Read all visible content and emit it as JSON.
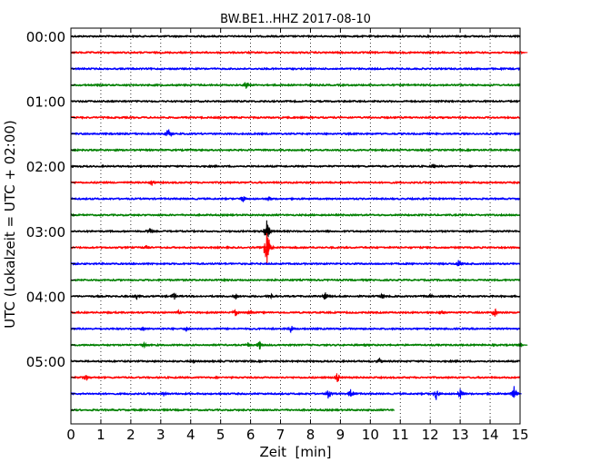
{
  "chart_data": {
    "type": "line",
    "title": "BW.BE1..HHZ 2017-08-10",
    "xlabel": "Zeit  [min]",
    "ylabel": "UTC (Lokalzeit = UTC + 02:00)",
    "xlim": [
      0,
      15
    ],
    "x_ticks": [
      "0",
      "1",
      "2",
      "3",
      "4",
      "5",
      "6",
      "7",
      "8",
      "9",
      "10",
      "11",
      "12",
      "13",
      "14",
      "15"
    ],
    "y_tick_labels": [
      "00:00",
      "01:00",
      "02:00",
      "03:00",
      "04:00",
      "05:00"
    ],
    "grid": "vertical dotted",
    "colors": [
      "#000000",
      "#ff0000",
      "#0000ff",
      "#008000"
    ],
    "trace_interval_minutes": 15,
    "series": [
      {
        "start": "00:00",
        "color": "#000000",
        "end_min": 15,
        "events": []
      },
      {
        "start": "00:15",
        "color": "#ff0000",
        "end_min": 15,
        "events": [
          {
            "t": 15.0,
            "amp": 2
          }
        ]
      },
      {
        "start": "00:30",
        "color": "#0000ff",
        "end_min": 15,
        "events": []
      },
      {
        "start": "00:45",
        "color": "#008000",
        "end_min": 15,
        "events": [
          {
            "t": 5.85,
            "amp": 5
          }
        ]
      },
      {
        "start": "01:00",
        "color": "#000000",
        "end_min": 15,
        "events": []
      },
      {
        "start": "01:15",
        "color": "#ff0000",
        "end_min": 15,
        "events": []
      },
      {
        "start": "01:30",
        "color": "#0000ff",
        "end_min": 15,
        "events": [
          {
            "t": 3.25,
            "amp": 6
          }
        ]
      },
      {
        "start": "01:45",
        "color": "#008000",
        "end_min": 15,
        "events": []
      },
      {
        "start": "02:00",
        "color": "#000000",
        "end_min": 15,
        "events": [
          {
            "t": 12.1,
            "amp": 4
          }
        ]
      },
      {
        "start": "02:15",
        "color": "#ff0000",
        "end_min": 15,
        "events": [
          {
            "t": 2.7,
            "amp": 4
          }
        ]
      },
      {
        "start": "02:30",
        "color": "#0000ff",
        "end_min": 15,
        "events": [
          {
            "t": 5.75,
            "amp": 5
          },
          {
            "t": 6.6,
            "amp": 4
          }
        ]
      },
      {
        "start": "02:45",
        "color": "#008000",
        "end_min": 15,
        "events": []
      },
      {
        "start": "03:00",
        "color": "#000000",
        "end_min": 15,
        "events": [
          {
            "t": 2.65,
            "amp": 4
          },
          {
            "t": 6.55,
            "amp": 14
          }
        ]
      },
      {
        "start": "03:15",
        "color": "#ff0000",
        "end_min": 15,
        "events": [
          {
            "t": 2.5,
            "amp": 3
          },
          {
            "t": 6.55,
            "amp": 26
          }
        ]
      },
      {
        "start": "03:30",
        "color": "#0000ff",
        "end_min": 15,
        "events": [
          {
            "t": 12.95,
            "amp": 5
          }
        ]
      },
      {
        "start": "03:45",
        "color": "#008000",
        "end_min": 15,
        "events": []
      },
      {
        "start": "04:00",
        "color": "#000000",
        "end_min": 15,
        "events": [
          {
            "t": 2.2,
            "amp": 4
          },
          {
            "t": 3.45,
            "amp": 5
          },
          {
            "t": 5.5,
            "amp": 4
          },
          {
            "t": 6.7,
            "amp": 3
          },
          {
            "t": 8.5,
            "amp": 5
          },
          {
            "t": 10.4,
            "amp": 4
          },
          {
            "t": 12.0,
            "amp": 3
          }
        ]
      },
      {
        "start": "04:15",
        "color": "#ff0000",
        "end_min": 15,
        "events": [
          {
            "t": 3.6,
            "amp": 3
          },
          {
            "t": 5.5,
            "amp": 5
          },
          {
            "t": 6.0,
            "amp": 3
          },
          {
            "t": 12.4,
            "amp": 3
          },
          {
            "t": 14.15,
            "amp": 6
          }
        ]
      },
      {
        "start": "04:30",
        "color": "#0000ff",
        "end_min": 15,
        "events": [
          {
            "t": 2.4,
            "amp": 3
          },
          {
            "t": 3.85,
            "amp": 4
          },
          {
            "t": 7.35,
            "amp": 5
          }
        ]
      },
      {
        "start": "04:45",
        "color": "#008000",
        "end_min": 15,
        "events": [
          {
            "t": 2.45,
            "amp": 4
          },
          {
            "t": 5.9,
            "amp": 4
          },
          {
            "t": 6.3,
            "amp": 6
          },
          {
            "t": 15.0,
            "amp": 3
          }
        ]
      },
      {
        "start": "05:00",
        "color": "#000000",
        "end_min": 15,
        "events": [
          {
            "t": 4.1,
            "amp": 3
          },
          {
            "t": 10.3,
            "amp": 4
          }
        ]
      },
      {
        "start": "05:15",
        "color": "#ff0000",
        "end_min": 15,
        "events": [
          {
            "t": 0.5,
            "amp": 5
          },
          {
            "t": 8.9,
            "amp": 7
          }
        ]
      },
      {
        "start": "05:30",
        "color": "#0000ff",
        "end_min": 15,
        "events": [
          {
            "t": 3.1,
            "amp": 3
          },
          {
            "t": 8.6,
            "amp": 6
          },
          {
            "t": 9.35,
            "amp": 6
          },
          {
            "t": 12.2,
            "amp": 7
          },
          {
            "t": 13.0,
            "amp": 6
          },
          {
            "t": 14.8,
            "amp": 9
          }
        ]
      },
      {
        "start": "05:45",
        "color": "#008000",
        "end_min": 10.8,
        "events": []
      }
    ]
  }
}
